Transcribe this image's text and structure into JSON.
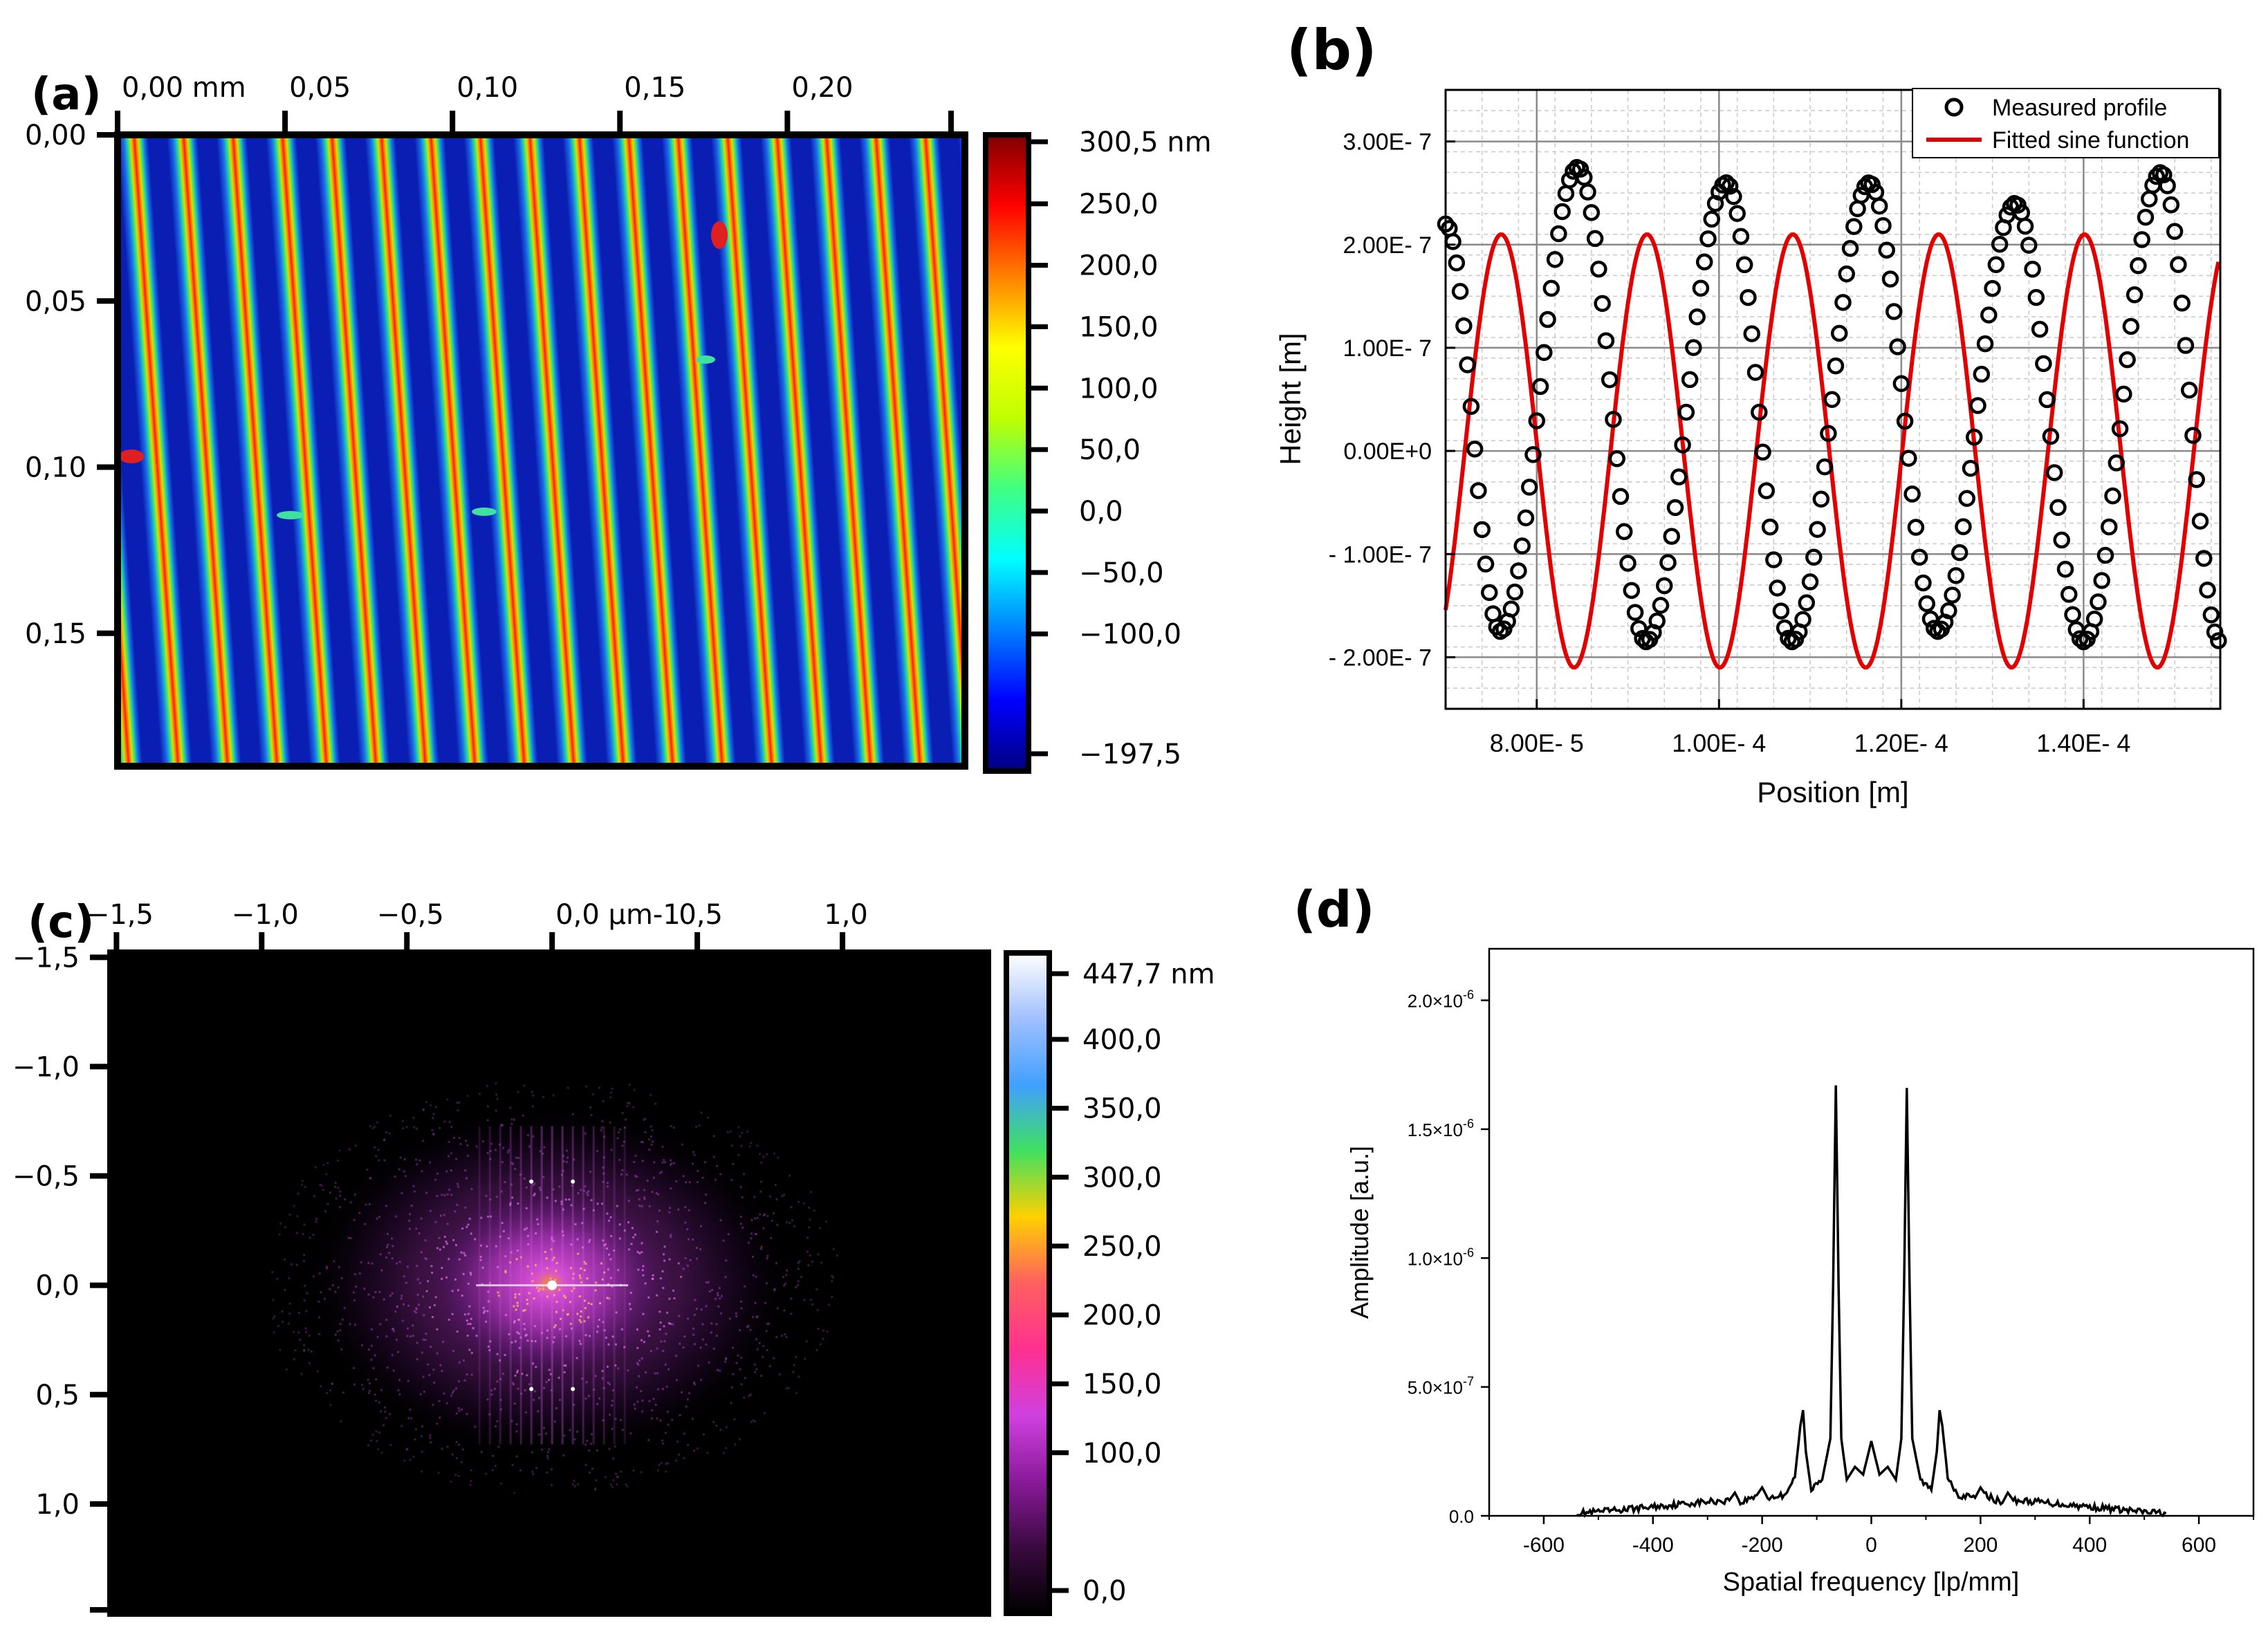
{
  "chart_data": [
    {
      "panel": "(a)",
      "type": "heatmap",
      "description": "Height map of a periodic grating with diagonal stripes",
      "x_ticks": [
        "0,00 mm",
        "0,05",
        "0,10",
        "0,15",
        "0,20"
      ],
      "x_tick_values": [
        0.0,
        0.05,
        0.1,
        0.15,
        0.2
      ],
      "y_ticks": [
        "0,00",
        "0,05",
        "0,10",
        "0,15"
      ],
      "y_tick_values": [
        0.0,
        0.05,
        0.1,
        0.15
      ],
      "x_range": [
        0.0,
        0.253
      ],
      "y_range": [
        0.0,
        0.19
      ],
      "stripe_count": 17,
      "colorbar": {
        "labels": [
          "300,5 nm",
          "250,0",
          "200,0",
          "150,0",
          "100,0",
          "50,0",
          "0,0",
          "−50,0",
          "−100,0",
          "−197,5"
        ],
        "values": [
          300.5,
          250,
          200,
          150,
          100,
          50,
          0,
          -50,
          -100,
          -197.5
        ],
        "range": [
          -197.5,
          300.5
        ],
        "colors": [
          "#00007f",
          "#0000ff",
          "#0080ff",
          "#00ffff",
          "#40ff80",
          "#c0ff00",
          "#ffff00",
          "#ff8000",
          "#ff0000",
          "#7f0000"
        ]
      }
    },
    {
      "panel": "(b)",
      "type": "scatter",
      "xlabel": "Position [m]",
      "ylabel": "Height [m]",
      "xlim": [
        7e-05,
        0.000155
      ],
      "ylim": [
        -2.5e-07,
        3.5e-07
      ],
      "x_ticks": [
        "8.00E- 5",
        "1.00E- 4",
        "1.20E- 4",
        "1.40E- 4"
      ],
      "x_tick_values": [
        8e-05,
        0.0001,
        0.00012,
        0.00014
      ],
      "y_ticks": [
        "3.00E- 7",
        "2.00E- 7",
        "1.00E- 7",
        "0.00E+0",
        "- 1.00E- 7",
        "- 2.00E- 7"
      ],
      "y_tick_values": [
        3e-07,
        2e-07,
        1e-07,
        0.0,
        -1e-07,
        -2e-07
      ],
      "legend": {
        "position": "top-right",
        "entries": [
          "Measured profile",
          "Fitted sine function"
        ]
      },
      "series": [
        {
          "name": "Fitted sine function",
          "color": "#e00000",
          "function": "A*sin(2*pi*(x - x0)/P)",
          "amplitude": 2.1e-07,
          "period": 1.6e-05,
          "phase_x0": 7.21e-05,
          "offset": 0.0
        },
        {
          "name": "Measured profile",
          "color": "#000000",
          "marker": "open-circle",
          "peaks": [
            {
              "x": 8.45e-05,
              "y": 2.75e-07
            },
            {
              "x": 0.0001008,
              "y": 2.6e-07
            },
            {
              "x": 0.0001165,
              "y": 2.6e-07
            },
            {
              "x": 0.0001325,
              "y": 2.4e-07
            },
            {
              "x": 0.0001485,
              "y": 2.7e-07
            }
          ],
          "valleys": [
            {
              "x": 7.6e-05,
              "y": -1.75e-07
            },
            {
              "x": 9.2e-05,
              "y": -1.85e-07
            },
            {
              "x": 0.000108,
              "y": -1.85e-07
            },
            {
              "x": 0.000124,
              "y": -1.75e-07
            },
            {
              "x": 0.00014,
              "y": -1.85e-07
            }
          ],
          "start_value": 2.2e-07
        }
      ]
    },
    {
      "panel": "(c)",
      "type": "heatmap",
      "description": "2D Fourier spectrum magnitude, bright at center",
      "x_ticks": [
        "−1,5",
        "−1,0",
        "−0,5",
        "0,0 µm-1",
        "0,5",
        "1,0"
      ],
      "x_tick_values": [
        -1.5,
        -1.0,
        -0.5,
        0.0,
        0.5,
        1.0
      ],
      "y_ticks": [
        "−1,5",
        "−1,0",
        "−0,5",
        "0,0",
        "0,5",
        "1,0"
      ],
      "y_tick_values": [
        -1.5,
        -1.0,
        -0.5,
        0.0,
        0.5,
        1.0
      ],
      "x_range": [
        -1.52,
        1.5
      ],
      "y_range": [
        -1.52,
        1.5
      ],
      "colorbar": {
        "labels": [
          "447,7 nm",
          "400,0",
          "350,0",
          "300,0",
          "250,0",
          "200,0",
          "150,0",
          "100,0",
          "0,0"
        ],
        "values": [
          447.7,
          400,
          350,
          300,
          250,
          200,
          150,
          100,
          0
        ],
        "range": [
          0,
          447.7
        ],
        "colors": [
          "#000000",
          "#3a0a40",
          "#8a1a9a",
          "#d040e0",
          "#ff3090",
          "#ff6060",
          "#ffd000",
          "#40e060",
          "#40a0ff",
          "#a0c0ff",
          "#ffffff"
        ]
      }
    },
    {
      "panel": "(d)",
      "type": "line",
      "xlabel": "Spatial frequency [lp/mm]",
      "ylabel": "Amplitude [a.u.]",
      "xlim": [
        -700,
        700
      ],
      "ylim": [
        0,
        2.2e-06
      ],
      "x_ticks": [
        "-600",
        "-400",
        "-200",
        "0",
        "200",
        "400",
        "600"
      ],
      "x_tick_values": [
        -600,
        -400,
        -200,
        0,
        200,
        400,
        600
      ],
      "y_ticks": [
        "0.0",
        "5.0×10",
        "1.0×10",
        "1.5×10",
        "2.0×10"
      ],
      "y_tick_exponents": [
        "",
        "-7",
        "-6",
        "-6",
        "-6"
      ],
      "y_tick_values": [
        0,
        5e-07,
        1e-06,
        1.5e-06,
        2e-06
      ],
      "series": [
        {
          "name": "spectrum",
          "color": "#000000",
          "x": [
            -540,
            -500,
            -450,
            -400,
            -350,
            -300,
            -260,
            -250,
            -240,
            -210,
            -200,
            -190,
            -160,
            -140,
            -130,
            -125,
            -120,
            -110,
            -90,
            -75,
            -70,
            -65,
            -60,
            -55,
            -45,
            -30,
            -15,
            -8,
            0,
            8,
            15,
            30,
            45,
            55,
            60,
            65,
            70,
            75,
            90,
            110,
            120,
            125,
            130,
            140,
            160,
            190,
            200,
            210,
            240,
            250,
            260,
            300,
            350,
            400,
            450,
            500,
            540
          ],
          "y": [
            1e-08,
            1.5e-08,
            2.5e-08,
            3.5e-08,
            4.5e-08,
            5.5e-08,
            6e-08,
            9e-08,
            5e-08,
            8e-08,
            1.1e-07,
            7e-08,
            8e-08,
            1.5e-07,
            3.5e-07,
            4.1e-07,
            2.5e-07,
            1e-07,
            1.4e-07,
            3e-07,
            9e-07,
            1.67e-06,
            9e-07,
            3e-07,
            1.4e-07,
            1.9e-07,
            1.6e-07,
            2.2e-07,
            2.9e-07,
            2.2e-07,
            1.6e-07,
            1.9e-07,
            1.4e-07,
            3e-07,
            9e-07,
            1.66e-06,
            9e-07,
            3e-07,
            1.4e-07,
            1e-07,
            2.5e-07,
            4.1e-07,
            3.5e-07,
            1.5e-07,
            8e-08,
            7e-08,
            1.1e-07,
            8e-08,
            5e-08,
            9e-08,
            6e-08,
            5.5e-08,
            4.5e-08,
            3.5e-08,
            2.5e-08,
            1.5e-08,
            1e-08
          ]
        }
      ]
    }
  ]
}
